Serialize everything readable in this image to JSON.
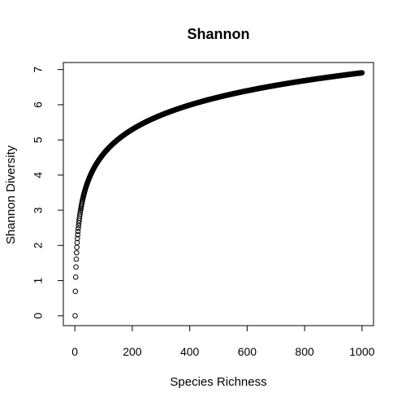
{
  "chart_data": {
    "type": "scatter",
    "title": "Shannon",
    "xlabel": "Species Richness",
    "ylabel": "Shannon Diversity",
    "xlim": [
      -40,
      1040
    ],
    "ylim": [
      -0.28,
      7.2
    ],
    "xticks": [
      0,
      200,
      400,
      600,
      800,
      1000
    ],
    "yticks": [
      0,
      1,
      2,
      3,
      4,
      5,
      6,
      7
    ],
    "xtick_labels": [
      "0",
      "200",
      "400",
      "600",
      "800",
      "1000"
    ],
    "ytick_labels": [
      "0",
      "1",
      "2",
      "3",
      "4",
      "5",
      "6",
      "7"
    ],
    "grid": false,
    "legend": "none",
    "marker": "open-circle",
    "color": "#000000",
    "series": [
      {
        "x_start": 1,
        "x_end": 1000,
        "x_step": 1,
        "y_function": "ln(x)"
      }
    ]
  }
}
